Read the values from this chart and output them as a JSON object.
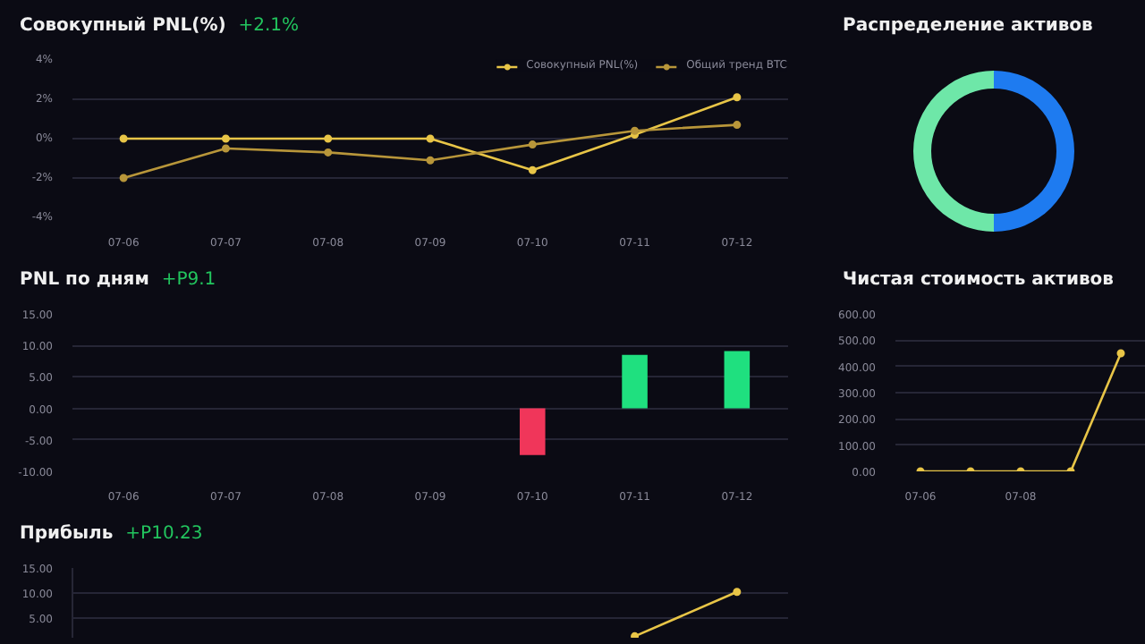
{
  "chart_data": [
    {
      "type": "line",
      "title": "Совокупный PNL(%)",
      "subtitle": "+2.1%",
      "categories": [
        "07-06",
        "07-07",
        "07-08",
        "07-09",
        "07-10",
        "07-11",
        "07-12"
      ],
      "series": [
        {
          "name": "Совокупный PNL(%)",
          "color": "#e8c547",
          "values": [
            0,
            0,
            0,
            0,
            -1.6,
            0.2,
            2.1
          ]
        },
        {
          "name": "Общий тренд BTC",
          "color": "#b8963a",
          "values": [
            -2,
            -0.5,
            -0.7,
            -1.1,
            -0.3,
            0.4,
            0.7
          ]
        }
      ],
      "ylim": [
        -4,
        4
      ],
      "yticks": [
        {
          "value": -4,
          "label": "-4%"
        },
        {
          "value": -2,
          "label": "-2%"
        },
        {
          "value": 0,
          "label": "0%"
        },
        {
          "value": 2,
          "label": "2%"
        },
        {
          "value": 4,
          "label": "4%"
        }
      ],
      "grid": "y",
      "legend": "top right",
      "marker": "circle"
    },
    {
      "type": "donut",
      "title": "Распределение активов",
      "categories": [
        null,
        null
      ],
      "values": [
        50,
        50
      ],
      "colors": [
        "#1e7bf0",
        "#6ee7a8"
      ]
    },
    {
      "type": "bar",
      "title": "PNL по дням",
      "subtitle": "+P9.1",
      "categories": [
        "07-06",
        "07-07",
        "07-08",
        "07-09",
        "07-10",
        "07-11",
        "07-12"
      ],
      "values": [
        null,
        null,
        null,
        null,
        -7.4,
        8.5,
        9.1
      ],
      "colors": [
        "#1fe07f",
        "#1fe07f",
        "#1fe07f",
        "#1fe07f",
        "#f0365a",
        "#1fe07f",
        "#1fe07f"
      ],
      "ylim": [
        -10,
        15
      ],
      "yticks": [
        {
          "value": -10,
          "label": "-10.00"
        },
        {
          "value": -5,
          "label": "-5.00"
        },
        {
          "value": 0,
          "label": "0.00"
        },
        {
          "value": 5,
          "label": "5.00"
        },
        {
          "value": 10,
          "label": "10.00"
        },
        {
          "value": 15,
          "label": "15.00"
        }
      ],
      "grid": "y"
    },
    {
      "type": "line",
      "title": "Чистая стоимость активов",
      "categories": [
        "07-06",
        null,
        "07-08",
        null,
        null
      ],
      "series": [
        {
          "color": "#e8c547",
          "values": [
            0,
            0,
            0,
            0,
            450
          ]
        }
      ],
      "ylim": [
        0,
        600
      ],
      "yticks": [
        {
          "value": 0,
          "label": "0.00"
        },
        {
          "value": 100,
          "label": "100.00"
        },
        {
          "value": 200,
          "label": "200.00"
        },
        {
          "value": 300,
          "label": "300.00"
        },
        {
          "value": 400,
          "label": "400.00"
        },
        {
          "value": 500,
          "label": "500.00"
        },
        {
          "value": 600,
          "label": "600.00"
        }
      ],
      "grid": "y",
      "marker": "circle"
    },
    {
      "type": "line",
      "title": "Прибыль",
      "subtitle": "+P10.23",
      "categories": [
        null,
        null,
        null,
        null,
        null,
        null,
        null
      ],
      "series": [
        {
          "color": "#e8c547",
          "values": [
            null,
            null,
            null,
            null,
            null,
            1.3,
            10.2
          ]
        }
      ],
      "ylim": [
        1,
        15
      ],
      "yticks": [
        {
          "value": 5,
          "label": "5.00"
        },
        {
          "value": 10,
          "label": "10.00"
        },
        {
          "value": 15,
          "label": "15.00"
        }
      ],
      "grid": "y",
      "marker": "circle",
      "tick_labels": "y"
    }
  ]
}
